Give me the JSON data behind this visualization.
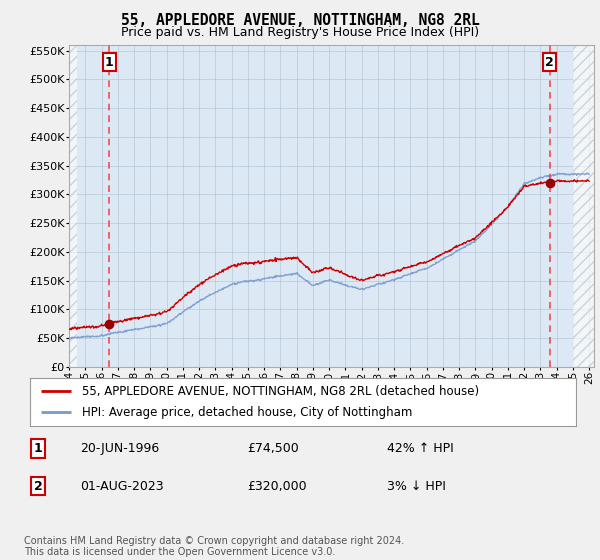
{
  "title": "55, APPLEDORE AVENUE, NOTTINGHAM, NG8 2RL",
  "subtitle": "Price paid vs. HM Land Registry's House Price Index (HPI)",
  "ylim": [
    0,
    560000
  ],
  "yticks": [
    0,
    50000,
    100000,
    150000,
    200000,
    250000,
    300000,
    350000,
    400000,
    450000,
    500000,
    550000
  ],
  "ytick_labels": [
    "£0",
    "£50K",
    "£100K",
    "£150K",
    "£200K",
    "£250K",
    "£300K",
    "£350K",
    "£400K",
    "£450K",
    "£500K",
    "£550K"
  ],
  "hpi_color": "#7799cc",
  "price_color": "#cc0000",
  "bg_color": "#f0f0f0",
  "plot_bg": "#dce9f5",
  "sale1_date": 1996.47,
  "sale1_price": 74500,
  "sale2_date": 2023.58,
  "sale2_price": 320000,
  "vline_color": "#ee3333",
  "marker_color": "#990000",
  "legend_label_price": "55, APPLEDORE AVENUE, NOTTINGHAM, NG8 2RL (detached house)",
  "legend_label_hpi": "HPI: Average price, detached house, City of Nottingham",
  "ann1_label": "1",
  "ann2_label": "2",
  "note1_num": "1",
  "note1_date": "20-JUN-1996",
  "note1_price": "£74,500",
  "note1_hpi": "42% ↑ HPI",
  "note2_num": "2",
  "note2_date": "01-AUG-2023",
  "note2_price": "£320,000",
  "note2_hpi": "3% ↓ HPI",
  "footer": "Contains HM Land Registry data © Crown copyright and database right 2024.\nThis data is licensed under the Open Government Licence v3.0.",
  "hatch_color": "#bbbbbb",
  "grid_color": "#aabbcc"
}
